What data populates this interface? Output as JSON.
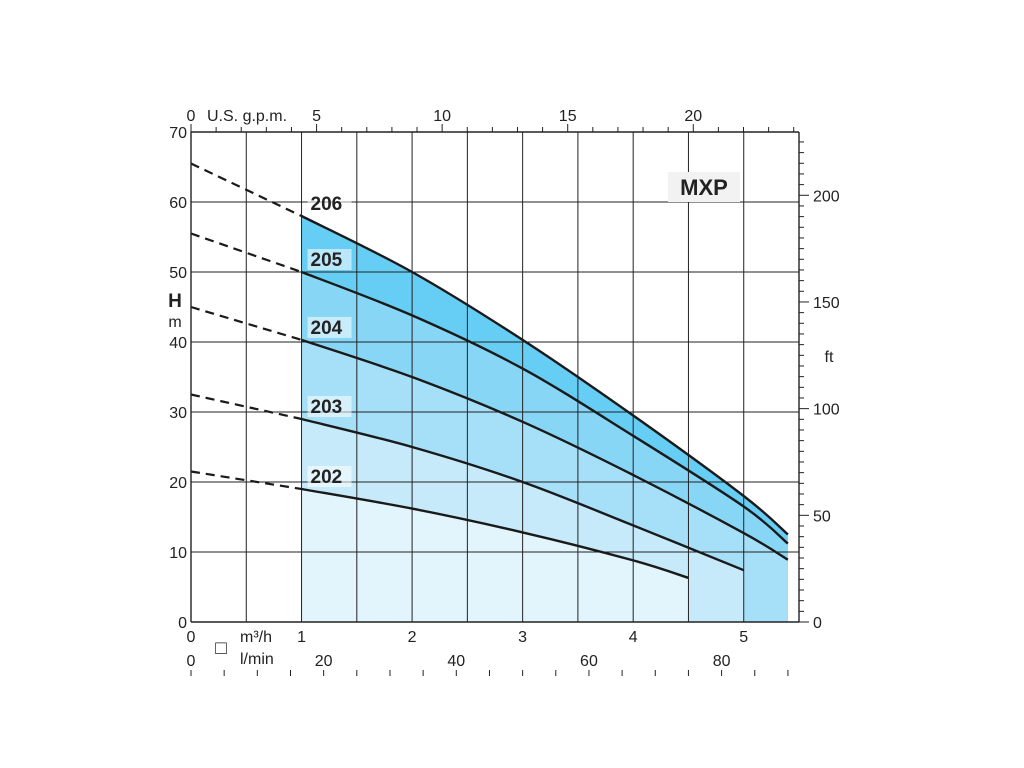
{
  "chart_data": {
    "type": "line",
    "model": "MXP",
    "y_axis": {
      "label": "H",
      "unit": "m",
      "range": [
        0,
        70
      ],
      "ticks": [
        "0",
        "10",
        "20",
        "30",
        "40",
        "50",
        "60",
        "70"
      ]
    },
    "y2_axis": {
      "unit": "ft",
      "range": [
        0,
        229.66
      ],
      "ticks": [
        "0",
        "50",
        "100",
        "150",
        "200"
      ]
    },
    "x_axis": {
      "unit": "m³/h",
      "range": [
        0,
        5.5
      ],
      "ticks": [
        "0",
        "1",
        "2",
        "3",
        "4",
        "5"
      ],
      "symbol": "□"
    },
    "x2_axis": {
      "unit": "l/min",
      "range": [
        0,
        91.67
      ],
      "ticks": [
        "0",
        "20",
        "40",
        "60",
        "80"
      ]
    },
    "x_top_axis": {
      "unit": "U.S. g.p.m.",
      "range": [
        0,
        24.21
      ],
      "ticks": [
        "0",
        "5",
        "10",
        "15",
        "20"
      ]
    },
    "grid": true,
    "operating_range_start": 1,
    "series": [
      {
        "name": "202",
        "dashed": [
          [
            0,
            21.5
          ],
          [
            1,
            19
          ]
        ],
        "points": [
          [
            1,
            19
          ],
          [
            2,
            16.2
          ],
          [
            3,
            12.8
          ],
          [
            4,
            8.8
          ],
          [
            4.5,
            6.3
          ]
        ],
        "fill": "#e2f4fc"
      },
      {
        "name": "203",
        "dashed": [
          [
            0,
            32.5
          ],
          [
            1,
            29
          ]
        ],
        "points": [
          [
            1,
            29
          ],
          [
            2,
            25
          ],
          [
            3,
            20
          ],
          [
            4,
            13.8
          ],
          [
            5,
            7.4
          ]
        ],
        "fill": "#c6eafa"
      },
      {
        "name": "204",
        "dashed": [
          [
            0,
            45
          ],
          [
            1,
            40.3
          ]
        ],
        "points": [
          [
            1,
            40.3
          ],
          [
            2,
            35
          ],
          [
            3,
            28.6
          ],
          [
            4,
            21
          ],
          [
            5,
            12.7
          ],
          [
            5.4,
            8.9
          ]
        ],
        "fill": "#a6dff8"
      },
      {
        "name": "205",
        "dashed": [
          [
            0,
            55.5
          ],
          [
            1,
            50
          ]
        ],
        "points": [
          [
            1,
            50
          ],
          [
            2,
            43.8
          ],
          [
            3,
            36.2
          ],
          [
            4,
            26.6
          ],
          [
            5,
            16.5
          ],
          [
            5.4,
            11.2
          ]
        ],
        "fill": "#88d6f6"
      },
      {
        "name": "206",
        "dashed": [
          [
            0,
            65.5
          ],
          [
            1,
            58
          ]
        ],
        "points": [
          [
            1,
            58
          ],
          [
            2,
            50
          ],
          [
            3,
            40.3
          ],
          [
            4,
            29.5
          ],
          [
            5,
            18
          ],
          [
            5.4,
            12.5
          ]
        ],
        "fill": "#66cdf4"
      }
    ]
  }
}
